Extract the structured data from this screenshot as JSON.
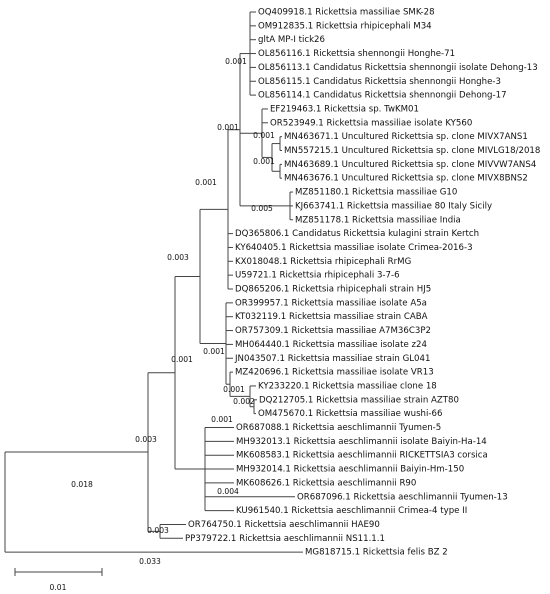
{
  "tree": {
    "leaves": [
      "OQ409918.1 Rickettsia massiliae SMK-28",
      "OM912835.1 Rickettsia rhipicephali M34",
      "gltA MP-I tick26",
      "OL856116.1 Rickettsia shennongii Honghe-71",
      "OL856113.1 Candidatus Rickettsia shennongii isolate Dehong-13",
      "OL856115.1 Candidatus Rickettsia shennongii Honghe-3",
      "OL856114.1 Candidatus Rickettsia shennongii Dehong-17",
      "EF219463.1 Rickettsia sp. TwKM01",
      "OR523949.1 Rickettsia massiliae isolate KY560",
      "MN463671.1 Uncultured Rickettsia sp. clone MIVX7ANS1",
      "MN557215.1 Uncultured Rickettsia sp. clone MIVLG18/2018",
      "MN463689.1 Uncultured Rickettsia sp. clone MIVVW7ANS4",
      "MN463676.1 Uncultured Rickettsia sp. clone MIVX8BNS2",
      "MZ851180.1 Rickettsia massiliae G10",
      "KJ663741.1 Rickettsia massiliae 80 Italy Sicily",
      "MZ851178.1 Rickettsia massiliae India",
      "DQ365806.1 Candidatus Rickettsia kulagini strain Kertch",
      "KY640405.1 Rickettsia massiliae isolate Crimea-2016-3",
      "KX018048.1 Rickettsia rhipicephali RrMG",
      "U59721.1 Rickettsia rhipicephali 3-7-6",
      "DQ865206.1 Rickettsia rhipicephali strain HJ5",
      "OR399957.1 Rickettsia massiliae isolate A5a",
      "KT032119.1 Rickettsia massiliae strain CABA",
      "OR757309.1 Rickettsia massiliae A7M36C3P2",
      "MH064440.1 Rickettsia massiliae isolate z24",
      "JN043507.1 Rickettsia massiliae strain GL041",
      "MZ420696.1 Rickettsia massiliae isolate VR13",
      "KY233220.1 Rickettsia massiliae clone 18",
      "DQ212705.1 Rickettsia massiliae strain AZT80",
      "OM475670.1 Rickettsia massiliae wushi-66",
      "OR687088.1 Rickettsia aeschlimannii Tyumen-5",
      "MH932013.1 Rickettsia aeschlimannii isolate Baiyin-Ha-14",
      "MK608583.1 Rickettsia aeschlimannii RICKETTSIA3 corsica",
      "MH932014.1 Rickettsia aeschlimannii Baiyin-Hm-150",
      "MK608626.1 Rickettsia aeschlimannii R90",
      "OR687096.1 Rickettsia aeschlimannii Tyumen-13",
      "KU961540.1 Rickettsia aeschlimannii Crimea-4 type II",
      "OR764750.1 Rickettsia aeschlimannii HAE90",
      "PP379722.1 Rickettsia aeschlimannii NS11.1.1",
      "MG818715.1 Rickettsia felis BZ 2"
    ],
    "branch_labels": [
      "0.001",
      "0.001",
      "0.001",
      "0.001",
      "0.001",
      "0.005",
      "0.003",
      "0.001",
      "0.001",
      "0.001",
      "0.002",
      "0.001",
      "0.003",
      "0.004",
      "0.018",
      "0.003",
      "0.033"
    ],
    "scale_label": "0.01"
  }
}
